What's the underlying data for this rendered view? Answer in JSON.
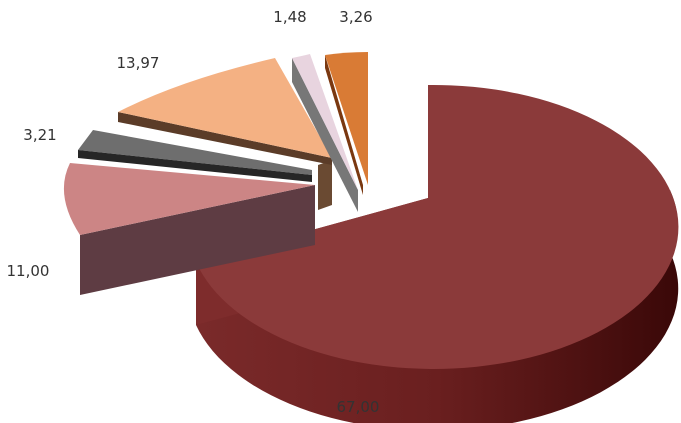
{
  "chart_data": {
    "type": "pie",
    "style": "3d-exploded",
    "legend": "none",
    "values": [
      67.0,
      11.0,
      3.21,
      13.97,
      1.48,
      3.26
    ],
    "labels": [
      "67,00",
      "11,00",
      "3,21",
      "13,97",
      "1,48",
      "3,26"
    ],
    "colors": [
      "#8b3a3a",
      "#cc8585",
      "#6e6e6e",
      "#f4b183",
      "#e8d4df",
      "#d97b35"
    ],
    "side_colors": [
      "#4a1414",
      "#5e3c43",
      "#262626",
      "#6a4a32",
      "#777777",
      "#7a3810"
    ]
  }
}
